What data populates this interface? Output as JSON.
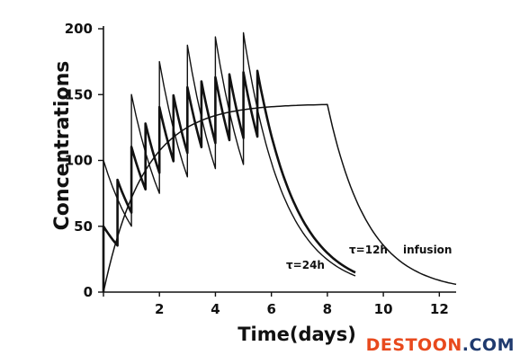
{
  "chart_data": {
    "type": "line",
    "xlabel": "Time(days)",
    "ylabel": "Concentrations",
    "xlim": [
      0,
      12.6
    ],
    "ylim": [
      0,
      200
    ],
    "xticks": [
      0,
      2,
      4,
      6,
      8,
      10,
      12
    ],
    "yticks": [
      0,
      50,
      100,
      150,
      200
    ],
    "xtick_labels": [
      "2",
      "4",
      "6",
      "8",
      "10",
      "12"
    ],
    "ytick_labels": [
      "0",
      "50",
      "100",
      "150",
      "200"
    ],
    "grid": false,
    "series": [
      {
        "name": "τ=24h",
        "interval_days": 1,
        "dose_increment": 100,
        "elimination_rate_per_day": 0.693,
        "dosing_stops_after_day": 6,
        "end_day": 9,
        "peaks": [
          100,
          150,
          175,
          188,
          194,
          197
        ]
      },
      {
        "name": "τ=12h",
        "interval_days": 0.5,
        "dose_increment": 50,
        "elimination_rate_per_day": 0.693,
        "dosing_stops_after_day": 6,
        "end_day": 9,
        "peaks": [
          50,
          85,
          110,
          130,
          141,
          150,
          160,
          166
        ]
      },
      {
        "name": "infusion",
        "steady_state": 143,
        "elimination_rate_per_day": 0.693,
        "infusion_stops_at_day": 8,
        "end_day": 12.6
      }
    ],
    "annotations": [
      "τ=24h",
      "τ=12h",
      "infusion"
    ]
  },
  "watermark": {
    "part1": "DESTOON",
    "part2": ".COM",
    "color1": "#e8491d",
    "color2": "#1f3a6e"
  }
}
